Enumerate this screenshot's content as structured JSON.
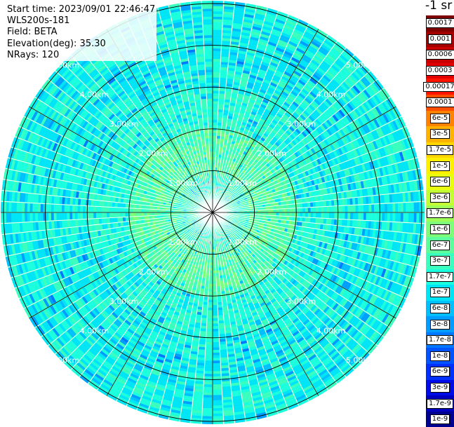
{
  "info": {
    "start_time": "Start time: 2023/09/01 22:46:47",
    "device": "WLS200s-181",
    "field": "Field: BETA",
    "elevation": "Elevation(deg): 35.30",
    "nrays": "NRays: 120"
  },
  "colorbar": {
    "unit": "-1 sr",
    "labels": [
      "0.0017",
      "0.001",
      "0.0006",
      "0.0003",
      "0.00017",
      "0.0001",
      "6e-5",
      "3e-5",
      "1.7e-5",
      "1e-5",
      "6e-6",
      "3e-6",
      "1.7e-6",
      "1e-6",
      "6e-7",
      "3e-7",
      "1.7e-7",
      "1e-7",
      "6e-8",
      "3e-8",
      "1.7e-8",
      "1e-8",
      "6e-9",
      "3e-9",
      "1.7e-9",
      "1e-9"
    ],
    "colors": [
      "#800000",
      "#a50000",
      "#c80000",
      "#e40000",
      "#ff1400",
      "#ff4d00",
      "#ff8200",
      "#ffb200",
      "#ffd700",
      "#fff000",
      "#e8ff10",
      "#c3ff35",
      "#a0ff57",
      "#7dff7a",
      "#5cff9c",
      "#3affbe",
      "#1cffde",
      "#00e4f8",
      "#00bfff",
      "#009cff",
      "#0078ff",
      "#0054ff",
      "#0030ff",
      "#000ce8",
      "#0000c0",
      "#000090"
    ]
  },
  "chart_data": {
    "type": "heatmap",
    "projection": "polar PPI",
    "field": "BETA",
    "nrays": 120,
    "range_rings_km": [
      1,
      2,
      3,
      4,
      5
    ],
    "ring_labels": [
      "1.00km",
      "2.00km",
      "3.00km",
      "4.00km",
      "5.00km"
    ],
    "max_range_km": 5.0,
    "value_range": [
      1e-09,
      0.0017
    ],
    "description_pattern": "near-range annulus ~1-2 km values around 1e-6 (green); elsewhere 3e-7 to 3e-8 (cyan to blue)"
  }
}
